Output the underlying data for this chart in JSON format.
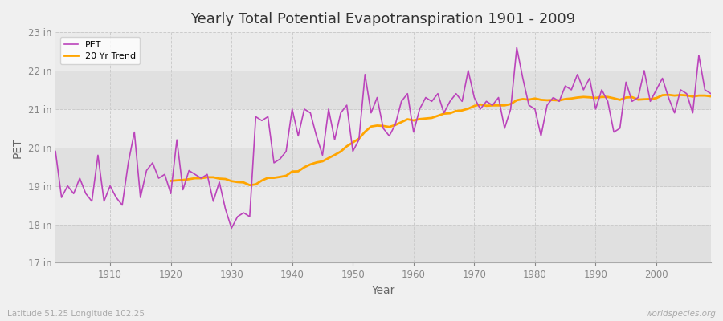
{
  "title": "Yearly Total Potential Evapotranspiration 1901 - 2009",
  "xlabel": "Year",
  "ylabel": "PET",
  "footnote_left": "Latitude 51.25 Longitude 102.25",
  "footnote_right": "worldspecies.org",
  "legend_pet": "PET",
  "legend_trend": "20 Yr Trend",
  "pet_color": "#BB44BB",
  "trend_color": "#FFA500",
  "background_color": "#F0F0F0",
  "plot_background_light": "#EBEBEB",
  "plot_background_dark": "#E0E0E0",
  "grid_color": "#CCCCCC",
  "ylim": [
    17,
    23
  ],
  "yticks": [
    17,
    18,
    19,
    20,
    21,
    22,
    23
  ],
  "ytick_labels": [
    "17 in",
    "18 in",
    "19 in",
    "20 in",
    "21 in",
    "22 in",
    "23 in"
  ],
  "start_year": 1901,
  "end_year": 2009,
  "trend_window": 20,
  "pet_values": [
    19.9,
    18.7,
    19.0,
    18.8,
    19.2,
    18.8,
    18.6,
    19.8,
    18.6,
    19.0,
    18.7,
    18.5,
    19.6,
    20.4,
    18.7,
    19.4,
    19.6,
    19.2,
    19.3,
    18.8,
    20.2,
    18.9,
    19.4,
    19.3,
    19.2,
    19.3,
    18.6,
    19.1,
    18.4,
    17.9,
    18.2,
    18.3,
    18.2,
    20.8,
    20.7,
    20.8,
    19.6,
    19.7,
    19.9,
    21.0,
    20.3,
    21.0,
    20.9,
    20.3,
    19.8,
    21.0,
    20.2,
    20.9,
    21.1,
    19.9,
    20.2,
    21.9,
    20.9,
    21.3,
    20.5,
    20.3,
    20.6,
    21.2,
    21.4,
    20.4,
    21.0,
    21.3,
    21.2,
    21.4,
    20.9,
    21.2,
    21.4,
    21.2,
    22.0,
    21.3,
    21.0,
    21.2,
    21.1,
    21.3,
    20.5,
    21.0,
    22.6,
    21.8,
    21.1,
    21.0,
    20.3,
    21.1,
    21.3,
    21.2,
    21.6,
    21.5,
    21.9,
    21.5,
    21.8,
    21.0,
    21.5,
    21.2,
    20.4,
    20.5,
    21.7,
    21.2,
    21.3,
    22.0,
    21.2,
    21.5,
    21.8,
    21.3,
    20.9,
    21.5,
    21.4,
    20.9,
    22.4,
    21.5,
    21.4
  ]
}
